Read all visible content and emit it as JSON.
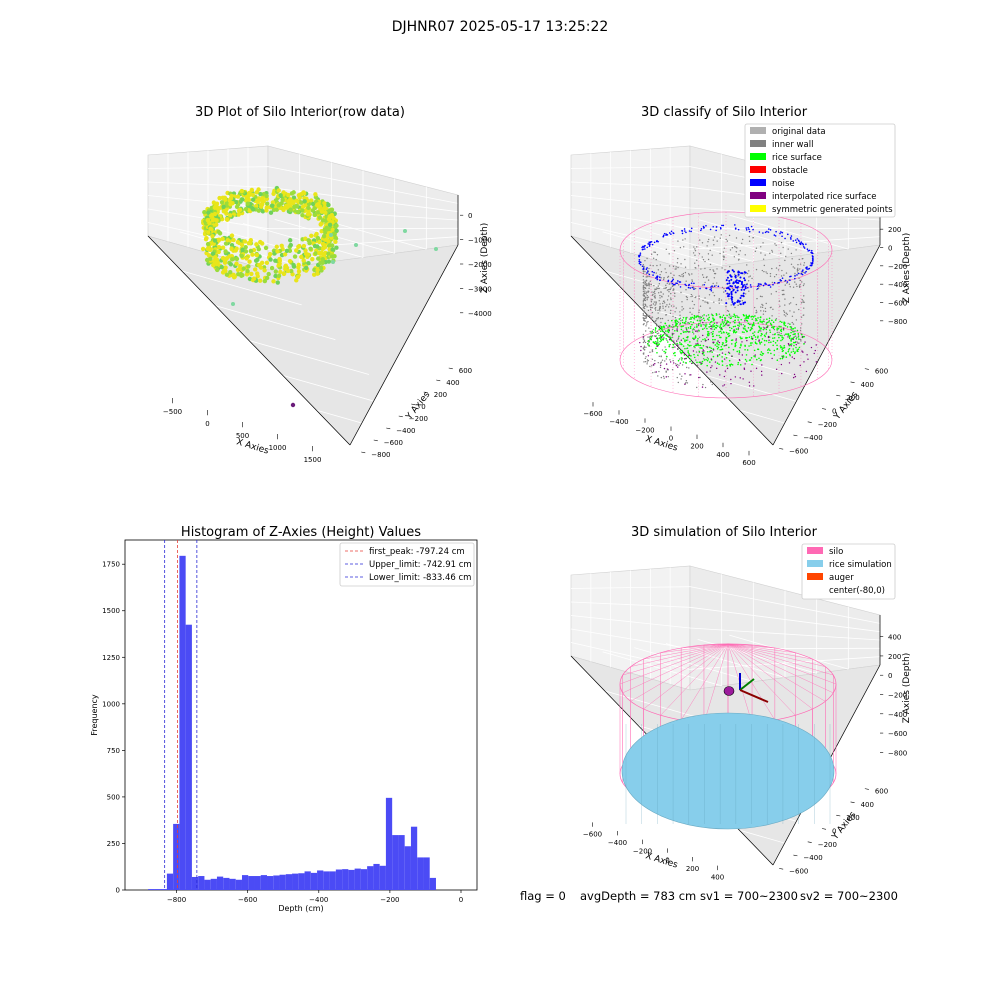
{
  "suptitle": "DJHNR07 2025-05-17 13:25:22",
  "status_line": {
    "flag": "flag = 0",
    "avg_depth": "avgDepth = 783 cm",
    "sv1": "sv1 = 700~2300",
    "sv2": "sv2 = 700~2300"
  },
  "colors": {
    "hist_bar": "#4b4bf5",
    "first_peak": "#e8403a",
    "limit_line": "#2a2ad6",
    "silo": "#ff69b4",
    "rice_simulation": "#87ceeb",
    "auger": "#ff4500",
    "original": "#b0b0b0",
    "inner_wall": "#808080",
    "rice_surface": "#00ff00",
    "obstacle": "#ff0000",
    "noise": "#0000ff",
    "interpolated": "#800080",
    "symmetric": "#ffff00"
  },
  "chart_data": [
    {
      "type": "scatter",
      "panel": "raw",
      "title": "3D Plot of Silo Interior(row data)",
      "xlabel": "X Axies",
      "ylabel": "Y Axies",
      "zlabel": "Z Axies (Depth)",
      "x_ticks": [
        "−500",
        "0",
        "500",
        "1000",
        "1500"
      ],
      "y_ticks": [
        "−800",
        "−600",
        "−400",
        "−200",
        "0",
        "200",
        "400",
        "600"
      ],
      "z_ticks": [
        "0",
        "−1000",
        "−2000",
        "−3000",
        "−4000"
      ],
      "xlim": [
        -700,
        1700
      ],
      "ylim": [
        -800,
        700
      ],
      "zlim": [
        -4300,
        0
      ]
    },
    {
      "type": "scatter",
      "panel": "classify",
      "title": "3D classify of Silo Interior",
      "xlabel": "X Axies",
      "ylabel": "Y Axies",
      "zlabel": "Z Axies (Depth)",
      "x_ticks": [
        "−600",
        "−400",
        "−200",
        "0",
        "200",
        "400",
        "600"
      ],
      "y_ticks": [
        "−600",
        "−400",
        "−200",
        "0",
        "200",
        "400",
        "600"
      ],
      "z_ticks": [
        "200",
        "0",
        "−200",
        "−400",
        "−600",
        "−800"
      ],
      "legend_placement": "top-right",
      "legend": [
        {
          "label": "original data",
          "color": "#b0b0b0"
        },
        {
          "label": "inner wall",
          "color": "#808080"
        },
        {
          "label": "rice surface",
          "color": "#00ff00"
        },
        {
          "label": "obstacle",
          "color": "#ff0000"
        },
        {
          "label": "noise",
          "color": "#0000ff"
        },
        {
          "label": "interpolated rice surface",
          "color": "#800080"
        },
        {
          "label": "symmetric generated points",
          "color": "#ffff00"
        }
      ]
    },
    {
      "type": "bar",
      "panel": "histogram",
      "title": "Histogram of Z-Axies (Height) Values",
      "xlabel": "Depth (cm)",
      "ylabel": "Frequency",
      "xlim": [
        -945,
        45
      ],
      "ylim": [
        0,
        1880
      ],
      "x_ticks": [
        -800,
        -600,
        -400,
        -200,
        0
      ],
      "y_ticks": [
        0,
        250,
        500,
        750,
        1000,
        1250,
        1500,
        1750
      ],
      "bin_start": -880,
      "bin_width": 17.6,
      "values": [
        5,
        5,
        5,
        88,
        355,
        1795,
        1425,
        70,
        75,
        55,
        60,
        72,
        65,
        60,
        55,
        80,
        75,
        75,
        80,
        75,
        78,
        82,
        85,
        88,
        90,
        100,
        92,
        105,
        100,
        100,
        110,
        112,
        108,
        115,
        112,
        128,
        140,
        130,
        495,
        295,
        295,
        235,
        340,
        175,
        175,
        65
      ],
      "lines": [
        {
          "label": "first_peak: -797.24 cm",
          "x": -797.24,
          "style": "first_peak"
        },
        {
          "label": "Upper_limit: -742.91 cm",
          "x": -742.91,
          "style": "limit"
        },
        {
          "label": "Lower_limit: -833.46 cm",
          "x": -833.46,
          "style": "limit"
        }
      ],
      "legend_placement": "top-right"
    },
    {
      "type": "scatter",
      "panel": "simulation",
      "title": "3D simulation of Silo Interior",
      "xlabel": "X Axies",
      "ylabel": "Y Axies",
      "zlabel": "Z Axies (Depth)",
      "x_ticks": [
        "−600",
        "−400",
        "−200",
        "0",
        "200",
        "400"
      ],
      "y_ticks": [
        "−600",
        "−400",
        "−200",
        "0",
        "200",
        "400",
        "600"
      ],
      "z_ticks": [
        "400",
        "200",
        "0",
        "−200",
        "−400",
        "−600",
        "−800"
      ],
      "legend_placement": "top-right",
      "legend": [
        {
          "label": "silo",
          "color": "#ff69b4"
        },
        {
          "label": "rice simulation",
          "color": "#87ceeb"
        },
        {
          "label": "auger",
          "color": "#ff4500"
        },
        {
          "label": "center(-80,0)",
          "color": "#ffffff"
        }
      ]
    }
  ]
}
